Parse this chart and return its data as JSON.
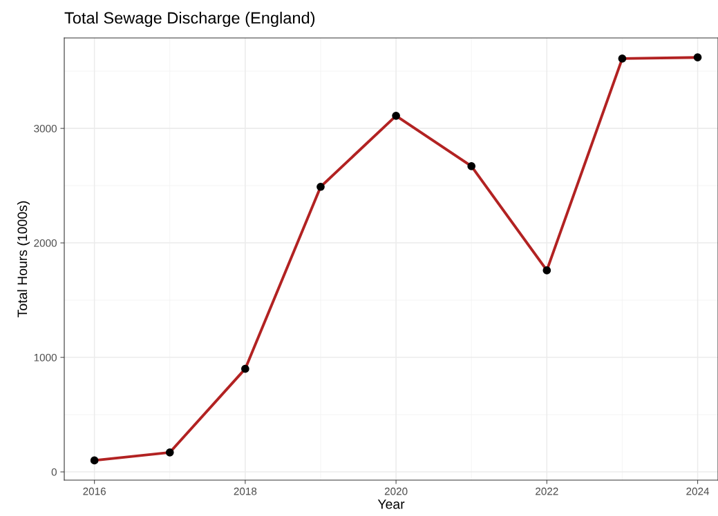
{
  "chart_data": {
    "type": "line",
    "title": "Total Sewage Discharge (England)",
    "xlabel": "Year",
    "ylabel": "Total Hours (1000s)",
    "x": [
      2016,
      2017,
      2018,
      2019,
      2020,
      2021,
      2022,
      2023,
      2024
    ],
    "series": [
      {
        "color": "#b22222",
        "colors": [
          "#000000",
          "#000000",
          "#000000",
          "#000000",
          "#000000",
          "#000000",
          "#000000",
          "#000000",
          "#000000"
        ],
        "values": [
          100,
          170,
          900,
          2490,
          3110,
          2670,
          1760,
          3610,
          3620
        ]
      }
    ],
    "xlim": [
      2015.6,
      2024.27
    ],
    "xticks": [
      2016,
      2018,
      2020,
      2022,
      2024
    ],
    "ylim": [
      -72,
      3790
    ],
    "yticks": [
      0,
      1000,
      2000,
      3000
    ],
    "grid": true,
    "marker": "circle",
    "line_style": "solid"
  }
}
